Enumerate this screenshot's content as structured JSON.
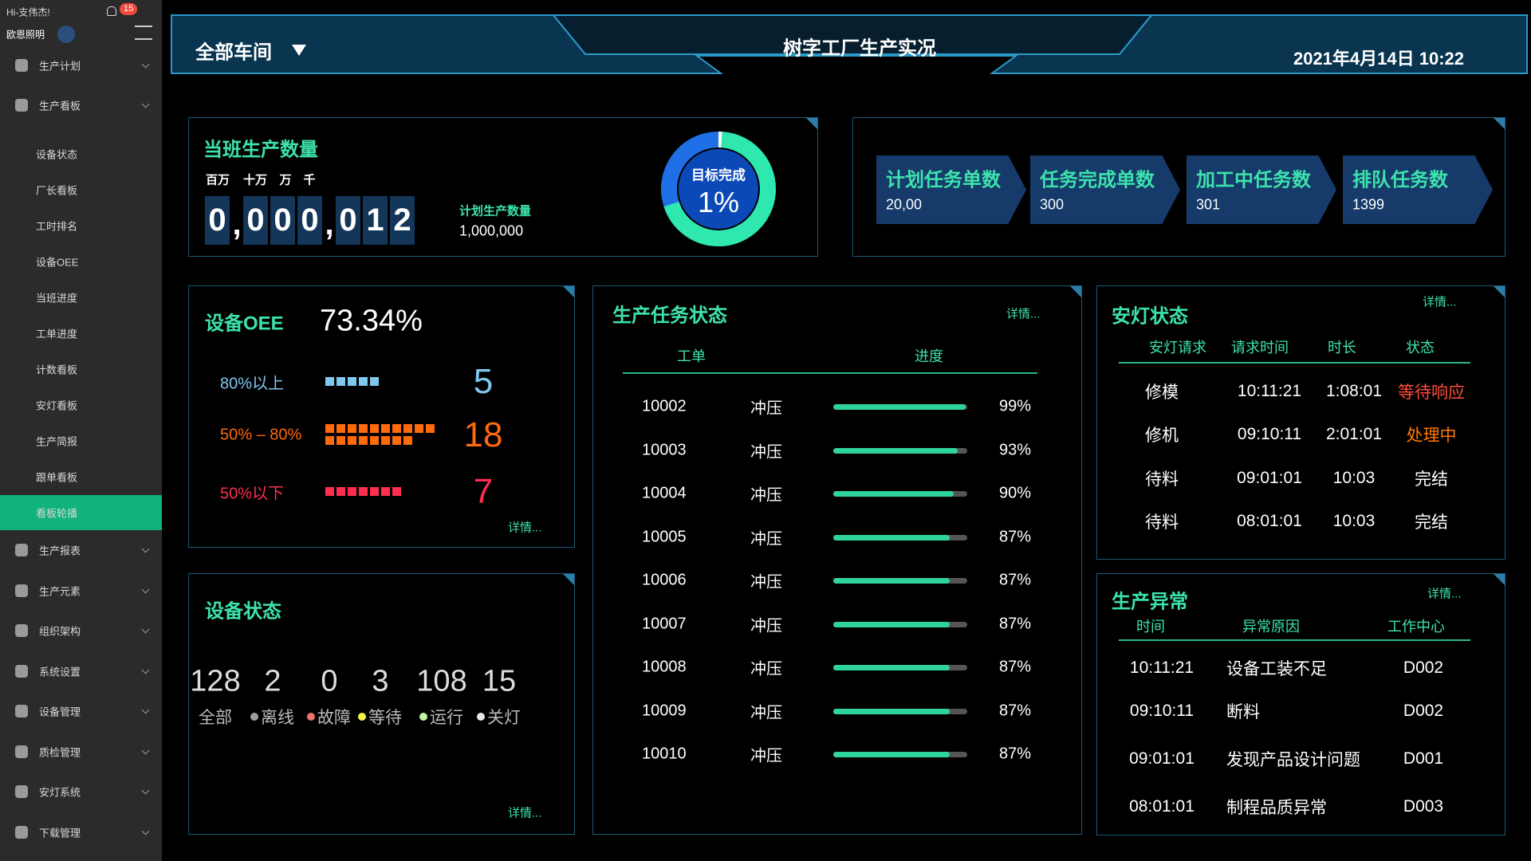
{
  "sidebar": {
    "greeting": "Hi-支伟杰!",
    "badge": "15",
    "company": "欧恩照明",
    "menu_top": [
      "生产计划",
      "生产看板"
    ],
    "submenu": [
      "设备状态",
      "厂长看板",
      "工时排名",
      "设备OEE",
      "当班进度",
      "工单进度",
      "计数看板",
      "安灯看板",
      "生产简报",
      "跟单看板",
      "看板轮播"
    ],
    "menu_bottom": [
      "生产报表",
      "生产元素",
      "组织架构",
      "系统设置",
      "设备管理",
      "质检管理",
      "安灯系统",
      "下载管理"
    ]
  },
  "header": {
    "workshop": "全部车间",
    "title": "树字工厂生产实况",
    "datetime": "2021年4月14日 10:22"
  },
  "output": {
    "title": "当班生产数量",
    "units": [
      "百万",
      "十万",
      "万",
      "千"
    ],
    "digits": [
      "0",
      ",",
      "0",
      "0",
      "0",
      ",",
      "0",
      "1",
      "2"
    ],
    "plan_label": "计划生产数量",
    "plan_value": "1,000,000",
    "target_label": "目标完成",
    "target": 1,
    "target_label_value": "1%"
  },
  "tasks_summary": [
    {
      "title": "计划任务单数",
      "value": "20,00"
    },
    {
      "title": "任务完成单数",
      "value": "300"
    },
    {
      "title": "加工中任务数",
      "value": "301"
    },
    {
      "title": "排队任务数",
      "value": "1399"
    }
  ],
  "oee": {
    "title": "设备OEE",
    "value": "73.34%",
    "more": "详情...",
    "rows": [
      {
        "label": "80%以上",
        "count": 5,
        "color": "#7fc8f0"
      },
      {
        "label": "50% – 80%",
        "count": 18,
        "color": "#ff6a0d"
      },
      {
        "label": "50%以下",
        "count": 7,
        "color": "#ff2d4f"
      }
    ]
  },
  "devices": {
    "title": "设备状态",
    "more": "详情...",
    "stats": [
      {
        "value": "128",
        "label": "全部",
        "color": null
      },
      {
        "value": "2",
        "label": "离线",
        "color": "#9aa0a6"
      },
      {
        "value": "0",
        "label": "故障",
        "color": "#f07070"
      },
      {
        "value": "3",
        "label": "等待",
        "color": "#f3f04a"
      },
      {
        "value": "108",
        "label": "运行",
        "color": "#c5f5a8"
      },
      {
        "value": "15",
        "label": "关灯",
        "color": "#e8e8e8"
      }
    ]
  },
  "task_status": {
    "title": "生产任务状态",
    "more": "详情...",
    "headers": [
      "工单",
      "进度"
    ],
    "rows": [
      {
        "id": "10002",
        "process": "冲压",
        "progress": 99,
        "progress_label": "99%"
      },
      {
        "id": "10003",
        "process": "冲压",
        "progress": 93,
        "progress_label": "93%"
      },
      {
        "id": "10004",
        "process": "冲压",
        "progress": 90,
        "progress_label": "90%"
      },
      {
        "id": "10005",
        "process": "冲压",
        "progress": 87,
        "progress_label": "87%"
      },
      {
        "id": "10006",
        "process": "冲压",
        "progress": 87,
        "progress_label": "87%"
      },
      {
        "id": "10007",
        "process": "冲压",
        "progress": 87,
        "progress_label": "87%"
      },
      {
        "id": "10008",
        "process": "冲压",
        "progress": 87,
        "progress_label": "87%"
      },
      {
        "id": "10009",
        "process": "冲压",
        "progress": 87,
        "progress_label": "87%"
      },
      {
        "id": "10010",
        "process": "冲压",
        "progress": 87,
        "progress_label": "87%"
      }
    ]
  },
  "andon": {
    "title": "安灯状态",
    "more": "详情...",
    "headers": [
      "安灯请求",
      "请求时间",
      "时长",
      "状态"
    ],
    "rows": [
      {
        "cells": [
          "修模",
          "10:11:21",
          "1:08:01",
          "等待响应"
        ],
        "color": "#ff4d3a"
      },
      {
        "cells": [
          "修机",
          "09:10:11",
          "2:01:01",
          "处理中"
        ],
        "color": "#ff7a00"
      },
      {
        "cells": [
          "待料",
          "09:01:01",
          "10:03",
          "完结"
        ],
        "color": "#ffffff"
      },
      {
        "cells": [
          "待料",
          "08:01:01",
          "10:03",
          "完结"
        ],
        "color": "#ffffff"
      }
    ]
  },
  "exceptions": {
    "title": "生产异常",
    "more": "详情...",
    "headers": [
      "时间",
      "异常原因",
      "工作中心"
    ],
    "rows": [
      [
        "10:11:21",
        "设备工装不足",
        "D002"
      ],
      [
        "09:10:11",
        "断料",
        "D002"
      ],
      [
        "09:01:01",
        "发现产品设计问题",
        "D001"
      ],
      [
        "08:01:01",
        "制程品质异常",
        "D003"
      ]
    ]
  }
}
